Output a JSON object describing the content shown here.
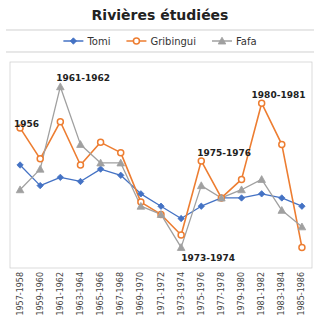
{
  "chart_data": {
    "type": "line",
    "title": "Rivières étudiées",
    "categories": [
      "1957-1958",
      "1959-1960",
      "1961-1962",
      "1963-1964",
      "1965-1966",
      "1967-1968",
      "1969-1970",
      "1971-1972",
      "1973-1974",
      "1975-1976",
      "1977-1978",
      "1979-1980",
      "1981-1982",
      "1983-1984",
      "1985-1986"
    ],
    "series": [
      {
        "name": "Tomi",
        "color": "#4472C4",
        "marker": "diamond",
        "values": [
          0.62,
          0.52,
          0.56,
          0.54,
          0.6,
          0.57,
          0.48,
          0.42,
          0.36,
          0.42,
          0.46,
          0.46,
          0.48,
          0.46,
          0.42
        ]
      },
      {
        "name": "Gribingui",
        "color": "#ED7D31",
        "marker": "circle",
        "values": [
          0.8,
          0.65,
          0.83,
          0.62,
          0.73,
          0.68,
          0.44,
          0.38,
          0.28,
          0.64,
          0.46,
          0.55,
          0.92,
          0.72,
          0.22
        ]
      },
      {
        "name": "Fafa",
        "color": "#A0A0A0",
        "marker": "triangle",
        "values": [
          0.5,
          0.6,
          1.0,
          0.72,
          0.63,
          0.63,
          0.42,
          0.38,
          0.22,
          0.52,
          0.46,
          0.5,
          0.55,
          0.4,
          0.32
        ]
      }
    ],
    "annotations": [
      {
        "text": "1956",
        "x": -0.3,
        "y": 0.82
      },
      {
        "text": "1961-1962",
        "x": 1.8,
        "y": 1.04
      },
      {
        "text": "1973-1974",
        "x": 8.0,
        "y": 0.17
      },
      {
        "text": "1975-1976",
        "x": 8.8,
        "y": 0.68
      },
      {
        "text": "1980-1981",
        "x": 11.5,
        "y": 0.96
      }
    ],
    "ylim": [
      0.12,
      1.12
    ],
    "yticks": [],
    "grid": false,
    "tick_labels": "x"
  }
}
